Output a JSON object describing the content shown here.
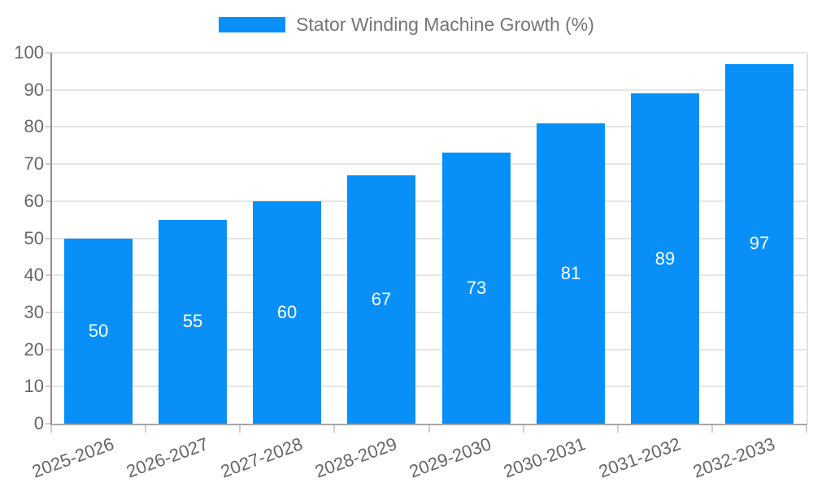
{
  "chart_data": {
    "type": "bar",
    "title": "",
    "legend": "Stator Winding Machine Growth (%)",
    "legend_position": "top-center",
    "categories": [
      "2025-2026",
      "2026-2027",
      "2027-2028",
      "2028-2029",
      "2029-2030",
      "2030-2031",
      "2031-2032",
      "2032-2033"
    ],
    "values": [
      50,
      55,
      60,
      67,
      73,
      81,
      89,
      97
    ],
    "xlabel": "",
    "ylabel": "",
    "ylim": [
      0,
      100
    ],
    "ytick_step": 10,
    "grid": true,
    "bar_color": "#0890F8",
    "value_label_color": "#ffffff",
    "axis_text_color": "#666666",
    "legend_text_color": "#757575"
  }
}
